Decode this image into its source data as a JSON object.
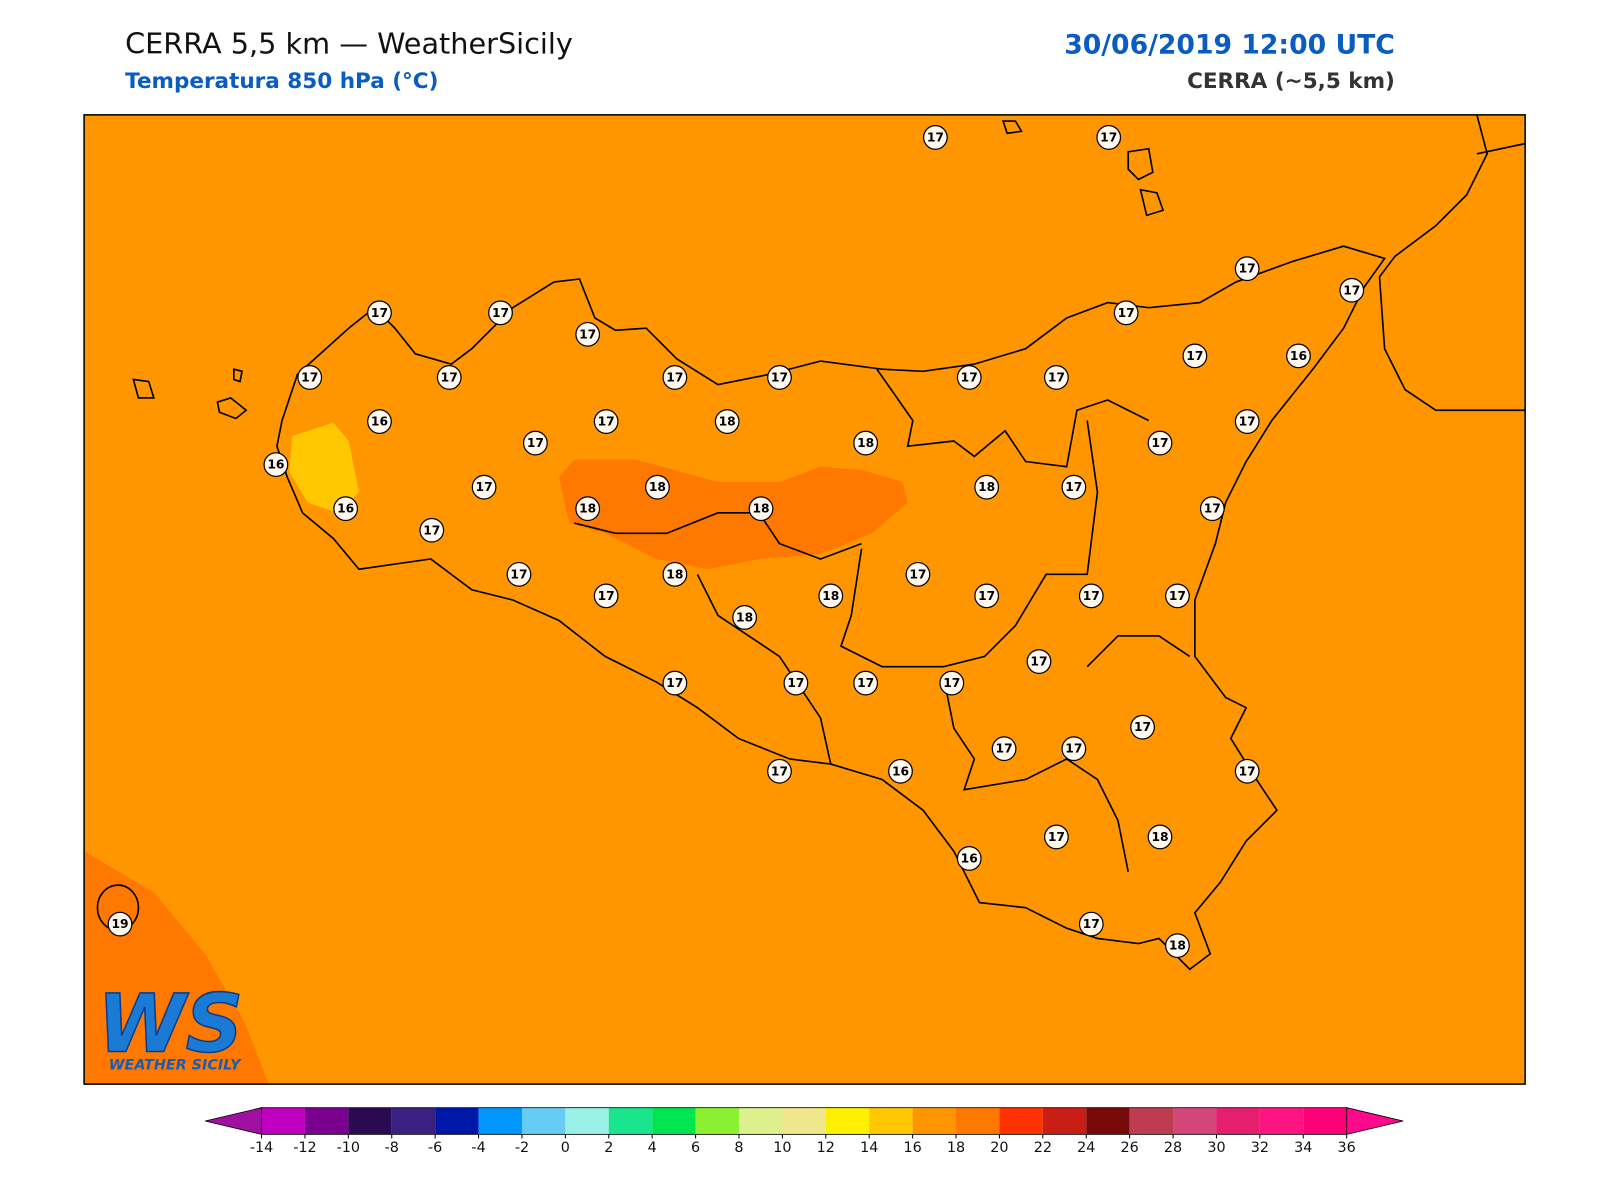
{
  "header": {
    "title": "CERRA 5,5 km — WeatherSicily",
    "subtitle": "Temperatura 850 hPa (°C)",
    "datetime": "30/06/2019 12:00 UTC",
    "model": "CERRA (~5,5 km)"
  },
  "map": {
    "background_color": "#ff9600",
    "station_values": [
      17,
      17,
      17,
      17,
      17,
      17,
      17,
      17,
      17,
      17,
      17,
      17,
      17,
      17,
      17,
      16,
      16,
      17,
      18,
      17,
      17,
      18,
      17,
      16,
      17,
      18,
      18,
      17,
      16,
      18,
      18,
      17,
      17,
      17,
      18,
      17,
      17,
      18,
      17,
      17,
      17,
      18,
      17,
      17,
      17,
      17,
      17,
      17,
      17,
      17,
      17,
      17,
      16,
      17,
      18,
      16,
      19,
      17,
      18
    ]
  },
  "colorbar": {
    "ticks": [
      -14,
      -12,
      -10,
      -8,
      -6,
      -4,
      -2,
      0,
      2,
      4,
      6,
      8,
      10,
      12,
      14,
      16,
      18,
      20,
      22,
      24,
      26,
      28,
      30,
      32,
      34,
      36
    ],
    "colors": [
      "#c000c0",
      "#7a0090",
      "#2a0a50",
      "#3a2080",
      "#0018a8",
      "#0096ff",
      "#66ccf5",
      "#99f0e6",
      "#19e68c",
      "#00e650",
      "#8cf032",
      "#dcf08c",
      "#f0e68c",
      "#fff000",
      "#ffc800",
      "#ff9600",
      "#ff7800",
      "#ff3200",
      "#c81e14",
      "#780a0a",
      "#be3c50",
      "#d24678",
      "#e61e6e",
      "#ff1482",
      "#ff0078"
    ],
    "under_color": "#a010a0",
    "over_color": "#ff0a8c"
  },
  "logo": {
    "mark": "WS",
    "name": "WEATHER SICILY"
  }
}
